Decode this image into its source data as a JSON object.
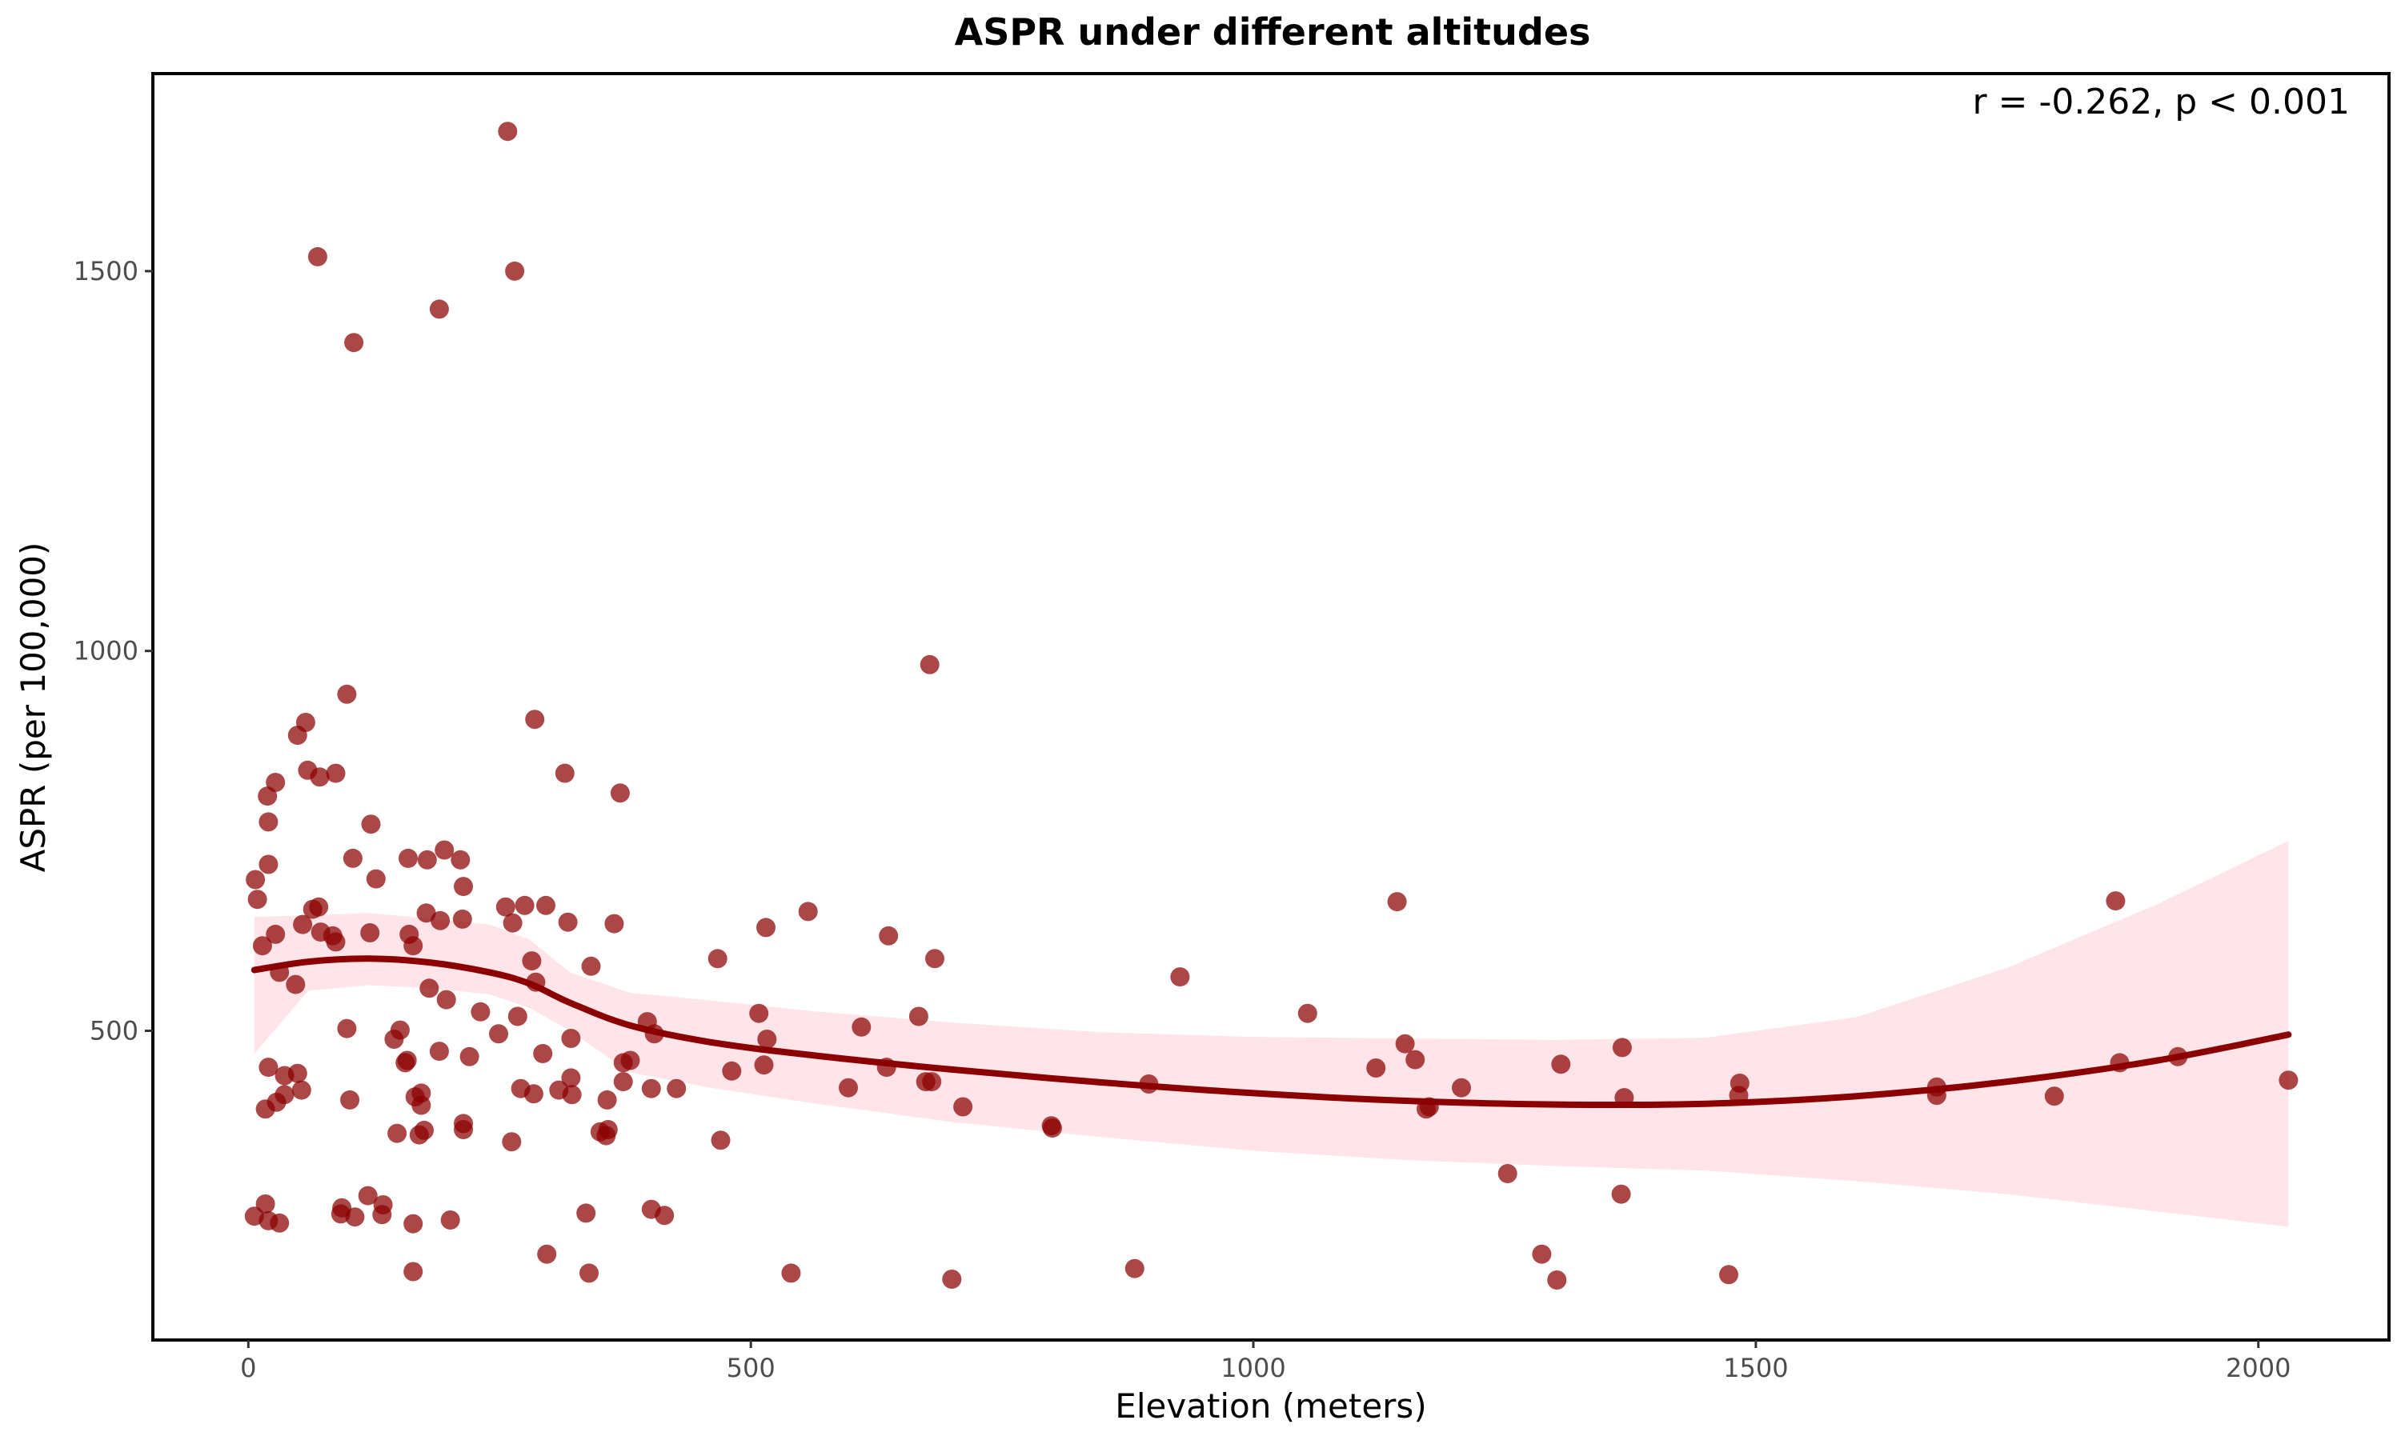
{
  "chart_data": {
    "type": "scatter",
    "title": "ASPR under different altitudes",
    "xlabel": "Elevation (meters)",
    "ylabel": "ASPR (per 100,000)",
    "annotation": "r = -0.262, p < 0.001",
    "xlim": [
      -95,
      2130
    ],
    "ylim": [
      93,
      1760
    ],
    "x_ticks": [
      0,
      500,
      1000,
      1500,
      2000
    ],
    "y_ticks": [
      500,
      1000,
      1500
    ],
    "grid": false,
    "colors": {
      "points": "#8b0000",
      "smooth_line": "#8b0000",
      "confidence_band": "#ffc0cb"
    },
    "points": [
      [
        258,
        1684
      ],
      [
        69,
        1519
      ],
      [
        265,
        1500
      ],
      [
        190,
        1450
      ],
      [
        105,
        1406
      ],
      [
        678,
        982
      ],
      [
        98,
        943
      ],
      [
        285,
        910
      ],
      [
        49,
        889
      ],
      [
        57,
        906
      ],
      [
        315,
        839
      ],
      [
        370,
        813
      ],
      [
        59,
        843
      ],
      [
        71,
        834
      ],
      [
        87,
        839
      ],
      [
        27,
        827
      ],
      [
        19,
        809
      ],
      [
        20,
        775
      ],
      [
        122,
        772
      ],
      [
        104,
        727
      ],
      [
        159,
        727
      ],
      [
        178,
        725
      ],
      [
        195,
        738
      ],
      [
        211,
        725
      ],
      [
        7,
        699
      ],
      [
        127,
        700
      ],
      [
        20,
        719
      ],
      [
        9,
        673
      ],
      [
        214,
        690
      ],
      [
        64,
        660
      ],
      [
        70,
        663
      ],
      [
        256,
        663
      ],
      [
        275,
        665
      ],
      [
        296,
        665
      ],
      [
        1143,
        670
      ],
      [
        1858,
        671
      ],
      [
        557,
        657
      ],
      [
        177,
        655
      ],
      [
        191,
        645
      ],
      [
        213,
        647
      ],
      [
        263,
        642
      ],
      [
        318,
        643
      ],
      [
        364,
        641
      ],
      [
        515,
        636
      ],
      [
        54,
        640
      ],
      [
        72,
        630
      ],
      [
        84,
        625
      ],
      [
        121,
        629
      ],
      [
        160,
        627
      ],
      [
        27,
        627
      ],
      [
        87,
        617
      ],
      [
        164,
        612
      ],
      [
        14,
        612
      ],
      [
        637,
        625
      ],
      [
        683,
        595
      ],
      [
        467,
        595
      ],
      [
        282,
        592
      ],
      [
        341,
        585
      ],
      [
        31,
        577
      ],
      [
        286,
        564
      ],
      [
        47,
        561
      ],
      [
        180,
        556
      ],
      [
        197,
        541
      ],
      [
        927,
        571
      ],
      [
        231,
        525
      ],
      [
        268,
        519
      ],
      [
        508,
        523
      ],
      [
        610,
        505
      ],
      [
        397,
        512
      ],
      [
        667,
        519
      ],
      [
        98,
        503
      ],
      [
        151,
        501
      ],
      [
        249,
        496
      ],
      [
        404,
        496
      ],
      [
        1054,
        523
      ],
      [
        145,
        489
      ],
      [
        321,
        490
      ],
      [
        516,
        489
      ],
      [
        293,
        470
      ],
      [
        190,
        473
      ],
      [
        220,
        466
      ],
      [
        156,
        458
      ],
      [
        158,
        461
      ],
      [
        380,
        461
      ],
      [
        373,
        458
      ],
      [
        1161,
        462
      ],
      [
        1151,
        483
      ],
      [
        1367,
        478
      ],
      [
        1306,
        456
      ],
      [
        1122,
        451
      ],
      [
        1862,
        458
      ],
      [
        1920,
        466
      ],
      [
        20,
        452
      ],
      [
        36,
        441
      ],
      [
        49,
        444
      ],
      [
        321,
        438
      ],
      [
        373,
        433
      ],
      [
        481,
        447
      ],
      [
        513,
        455
      ],
      [
        635,
        452
      ],
      [
        674,
        433
      ],
      [
        680,
        433
      ],
      [
        896,
        430
      ],
      [
        1484,
        431
      ],
      [
        1680,
        426
      ],
      [
        2030,
        435
      ],
      [
        1207,
        425
      ],
      [
        1680,
        415
      ],
      [
        1797,
        414
      ],
      [
        1483,
        415
      ],
      [
        1369,
        412
      ],
      [
        271,
        424
      ],
      [
        284,
        417
      ],
      [
        309,
        422
      ],
      [
        322,
        416
      ],
      [
        401,
        424
      ],
      [
        426,
        424
      ],
      [
        597,
        425
      ],
      [
        53,
        422
      ],
      [
        36,
        416
      ],
      [
        28,
        406
      ],
      [
        101,
        409
      ],
      [
        172,
        418
      ],
      [
        166,
        413
      ],
      [
        172,
        402
      ],
      [
        711,
        400
      ],
      [
        1175,
        400
      ],
      [
        1172,
        397
      ],
      [
        17,
        397
      ],
      [
        357,
        409
      ],
      [
        350,
        367
      ],
      [
        356,
        362
      ],
      [
        358,
        370
      ],
      [
        214,
        378
      ],
      [
        214,
        370
      ],
      [
        148,
        365
      ],
      [
        170,
        363
      ],
      [
        175,
        369
      ],
      [
        262,
        354
      ],
      [
        470,
        356
      ],
      [
        799,
        375
      ],
      [
        800,
        372
      ],
      [
        1253,
        312
      ],
      [
        1366,
        285
      ],
      [
        119,
        283
      ],
      [
        134,
        271
      ],
      [
        93,
        267
      ],
      [
        17,
        272
      ],
      [
        6,
        256
      ],
      [
        92,
        259
      ],
      [
        106,
        255
      ],
      [
        133,
        258
      ],
      [
        31,
        247
      ],
      [
        20,
        250
      ],
      [
        164,
        246
      ],
      [
        201,
        251
      ],
      [
        336,
        260
      ],
      [
        401,
        265
      ],
      [
        414,
        257
      ],
      [
        297,
        206
      ],
      [
        1287,
        206
      ],
      [
        164,
        183
      ],
      [
        339,
        181
      ],
      [
        540,
        181
      ],
      [
        700,
        173
      ],
      [
        882,
        187
      ],
      [
        1302,
        172
      ],
      [
        1473,
        179
      ]
    ],
    "smooth": {
      "x": [
        6,
        60,
        120,
        180,
        240,
        280,
        320,
        380,
        460,
        560,
        700,
        850,
        1000,
        1150,
        1300,
        1450,
        1600,
        1750,
        1900,
        2030
      ],
      "y": [
        580,
        591,
        595,
        590,
        577,
        562,
        537,
        507,
        485,
        468,
        449,
        432,
        418,
        408,
        403,
        404,
        414,
        433,
        461,
        495
      ],
      "lower": [
        470,
        553,
        560,
        556,
        548,
        530,
        500,
        445,
        425,
        405,
        380,
        360,
        342,
        330,
        322,
        316,
        302,
        285,
        262,
        242
      ],
      "upper": [
        650,
        652,
        655,
        648,
        640,
        620,
        577,
        550,
        540,
        526,
        511,
        498,
        492,
        490,
        488,
        491,
        518,
        583,
        667,
        750
      ]
    }
  }
}
